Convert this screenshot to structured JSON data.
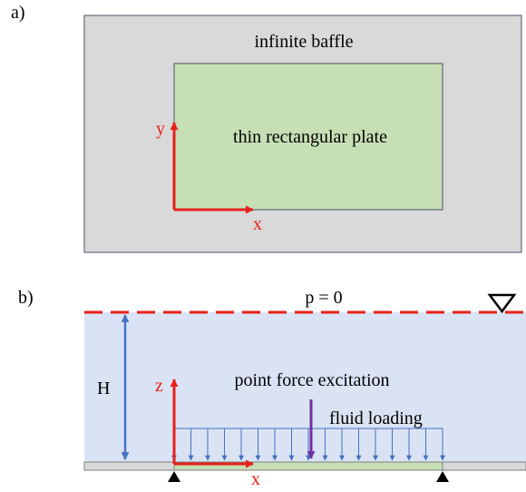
{
  "panel_a": {
    "label": "a)",
    "baffle_label": "infinite baffle",
    "plate_label": "thin rectangular plate",
    "axis_x": "x",
    "axis_y": "y",
    "colors": {
      "baffle_fill": "#d9d9d9",
      "plate_fill": "#c6dfb4",
      "border": "#44546a",
      "axis": "#e8201a"
    }
  },
  "panel_b": {
    "label": "b)",
    "surface_label": "p = 0",
    "depth_label": "H",
    "force_label": "point force excitation",
    "loading_label": "fluid loading",
    "axis_x": "x",
    "axis_z": "z",
    "free_surface_symbol": "∇",
    "colors": {
      "fluid_fill": "#dae3f3",
      "surface_line": "#e8201a",
      "depth_arrow": "#4472c4",
      "force_arrow": "#7030a0",
      "loading_arrows": "#4472c4",
      "plate_fill": "#c6dfb4",
      "baffle_fill": "#d9d9d9",
      "axis": "#e8201a",
      "support": "#000000"
    }
  }
}
